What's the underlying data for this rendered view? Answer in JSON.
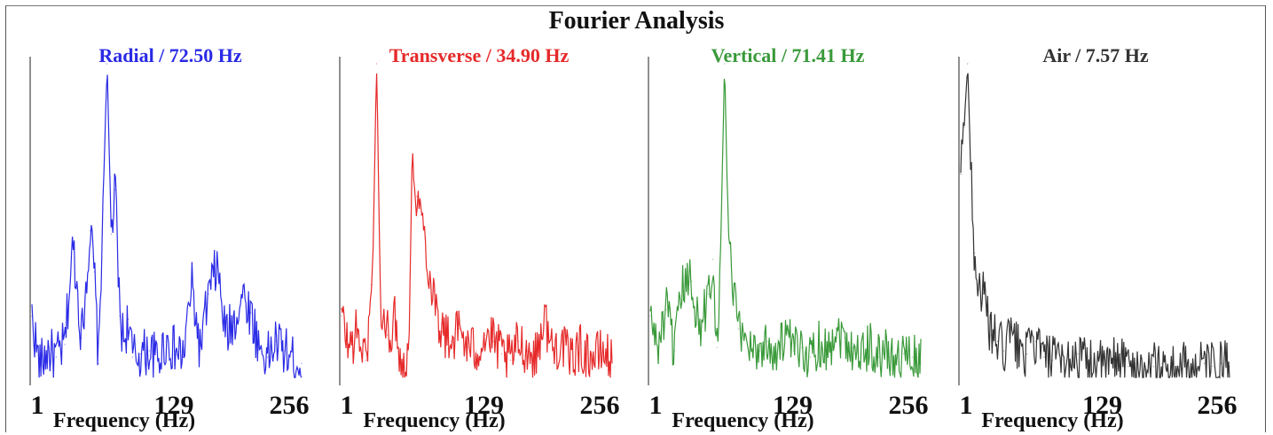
{
  "title": "Fourier Analysis",
  "chart_data": [
    {
      "type": "line",
      "title": "Radial / 72.50 Hz",
      "color": "#2a2ae6",
      "xlabel": "Frequency (Hz)",
      "xticks": [
        "1",
        "129",
        "256"
      ],
      "xlim": [
        1,
        256
      ],
      "ylim": [
        0,
        1
      ],
      "peak_hz": 72.5,
      "x": [
        1,
        8,
        16,
        24,
        32,
        40,
        48,
        56,
        60,
        64,
        68,
        72,
        76,
        80,
        84,
        88,
        92,
        96,
        104,
        112,
        120,
        128,
        136,
        144,
        152,
        160,
        168,
        176,
        184,
        192,
        200,
        208,
        216,
        224,
        232,
        240,
        248,
        256
      ],
      "y": [
        0.2,
        0.04,
        0.09,
        0.07,
        0.11,
        0.43,
        0.13,
        0.47,
        0.34,
        0.05,
        0.54,
        1.0,
        0.46,
        0.6,
        0.2,
        0.12,
        0.19,
        0.07,
        0.08,
        0.09,
        0.06,
        0.12,
        0.09,
        0.07,
        0.3,
        0.09,
        0.27,
        0.36,
        0.14,
        0.18,
        0.27,
        0.21,
        0.1,
        0.07,
        0.12,
        0.09,
        0.06,
        0.05
      ]
    },
    {
      "type": "line",
      "title": "Transverse / 34.90 Hz",
      "color": "#e62a2a",
      "xlabel": "Frequency (Hz)",
      "xticks": [
        "1",
        "129",
        "256"
      ],
      "xlim": [
        1,
        256
      ],
      "ylim": [
        0,
        1
      ],
      "peak_hz": 34.9,
      "x": [
        1,
        8,
        16,
        24,
        30,
        34,
        38,
        44,
        52,
        58,
        64,
        68,
        72,
        76,
        80,
        84,
        88,
        92,
        96,
        104,
        112,
        120,
        128,
        136,
        144,
        152,
        160,
        168,
        176,
        184,
        192,
        200,
        208,
        216,
        224,
        232,
        240,
        248,
        256
      ],
      "y": [
        0.2,
        0.1,
        0.15,
        0.06,
        0.3,
        1.0,
        0.2,
        0.14,
        0.19,
        0.03,
        0.1,
        0.7,
        0.58,
        0.52,
        0.45,
        0.32,
        0.28,
        0.2,
        0.15,
        0.12,
        0.16,
        0.1,
        0.09,
        0.14,
        0.12,
        0.08,
        0.06,
        0.12,
        0.09,
        0.07,
        0.2,
        0.09,
        0.12,
        0.06,
        0.1,
        0.08,
        0.07,
        0.09,
        0.05
      ]
    },
    {
      "type": "line",
      "title": "Vertical / 71.41 Hz",
      "color": "#3a9a3a",
      "xlabel": "Frequency (Hz)",
      "xticks": [
        "1",
        "129",
        "256"
      ],
      "xlim": [
        1,
        256
      ],
      "ylim": [
        0,
        1
      ],
      "peak_hz": 71.41,
      "x": [
        1,
        8,
        16,
        24,
        32,
        40,
        48,
        56,
        60,
        64,
        68,
        71,
        74,
        78,
        84,
        90,
        96,
        104,
        112,
        120,
        128,
        136,
        144,
        152,
        160,
        168,
        176,
        184,
        192,
        200,
        208,
        216,
        224,
        232,
        240,
        248,
        256
      ],
      "y": [
        0.2,
        0.1,
        0.22,
        0.09,
        0.3,
        0.31,
        0.15,
        0.27,
        0.38,
        0.1,
        0.5,
        1.0,
        0.55,
        0.3,
        0.16,
        0.14,
        0.11,
        0.09,
        0.12,
        0.08,
        0.14,
        0.09,
        0.1,
        0.07,
        0.12,
        0.09,
        0.16,
        0.13,
        0.1,
        0.08,
        0.11,
        0.07,
        0.09,
        0.06,
        0.08,
        0.07,
        0.05
      ]
    },
    {
      "type": "line",
      "title": "Air / 7.57 Hz",
      "color": "#333333",
      "xlabel": "Frequency (Hz)",
      "xticks": [
        "1",
        "129",
        "256"
      ],
      "xlim": [
        1,
        256
      ],
      "ylim": [
        0,
        1
      ],
      "peak_hz": 7.57,
      "x": [
        1,
        4,
        7.57,
        10,
        14,
        18,
        22,
        26,
        30,
        36,
        42,
        48,
        56,
        64,
        72,
        80,
        88,
        96,
        104,
        112,
        120,
        128,
        136,
        144,
        152,
        160,
        168,
        176,
        184,
        192,
        200,
        208,
        216,
        224,
        232,
        240,
        248,
        256
      ],
      "y": [
        0.65,
        0.8,
        1.0,
        0.72,
        0.4,
        0.3,
        0.27,
        0.2,
        0.14,
        0.12,
        0.09,
        0.14,
        0.1,
        0.08,
        0.12,
        0.07,
        0.06,
        0.05,
        0.06,
        0.08,
        0.05,
        0.06,
        0.04,
        0.05,
        0.08,
        0.04,
        0.05,
        0.03,
        0.04,
        0.05,
        0.03,
        0.04,
        0.04,
        0.03,
        0.05,
        0.04,
        0.05,
        0.04
      ]
    }
  ]
}
